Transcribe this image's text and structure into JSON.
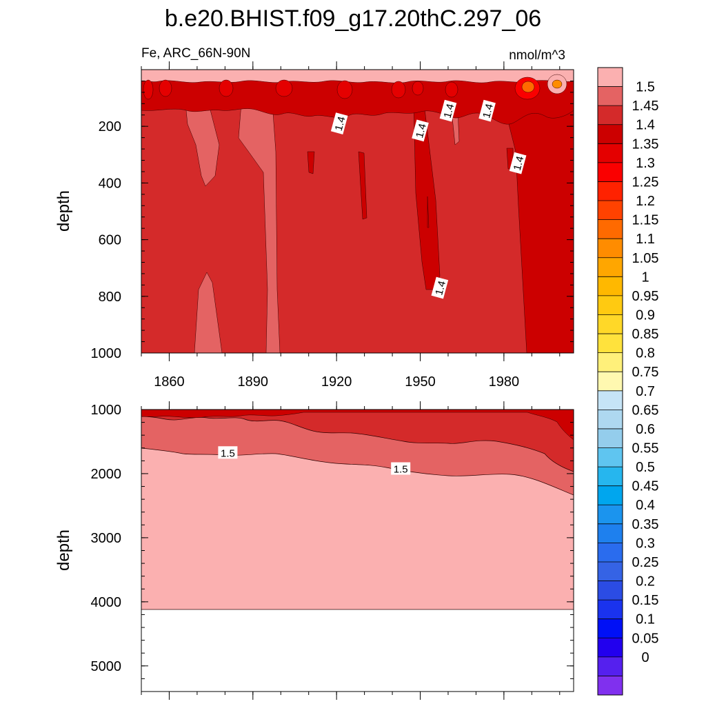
{
  "chart_data": {
    "type": "heatmap",
    "title": "b.e20.BHIST.f09_g17.20thC.297_06",
    "subtitle_left": "Fe, ARC_66N-90N",
    "subtitle_right": "nmol/m^3",
    "x_ticks": [
      1860,
      1890,
      1920,
      1950,
      1980
    ],
    "xlim": [
      1850,
      2005
    ],
    "panels": [
      {
        "name": "upper",
        "ylabel": "depth",
        "ylim": [
          0,
          1000
        ],
        "y_ticks": [
          200,
          400,
          600,
          800,
          1000
        ],
        "background_value": 1.4,
        "contour_labels": [
          {
            "text": "1.4",
            "year": 1921,
            "depth": 190
          },
          {
            "text": "1.4",
            "year": 1950,
            "depth": 215
          },
          {
            "text": "1.4",
            "year": 1960,
            "depth": 145
          },
          {
            "text": "1.4",
            "year": 1974,
            "depth": 145
          },
          {
            "text": "1.4",
            "year": 1985,
            "depth": 330
          },
          {
            "text": "1.4",
            "year": 1957,
            "depth": 770
          }
        ]
      },
      {
        "name": "lower",
        "ylabel": "depth",
        "ylim": [
          1000,
          5400
        ],
        "y_ticks": [
          1000,
          2000,
          3000,
          4000,
          5000
        ],
        "bottom_depth": 4120,
        "contour_labels": [
          {
            "text": "1.5",
            "year": 1881,
            "depth": 1670
          },
          {
            "text": "1.5",
            "year": 1943,
            "depth": 1920
          }
        ]
      }
    ],
    "colorbar": {
      "labels": [
        "1.5",
        "1.45",
        "1.4",
        "1.35",
        "1.3",
        "1.25",
        "1.2",
        "1.15",
        "1.1",
        "1.05",
        "1",
        "0.95",
        "0.9",
        "0.85",
        "0.8",
        "0.75",
        "0.7",
        "0.65",
        "0.6",
        "0.55",
        "0.5",
        "0.45",
        "0.4",
        "0.35",
        "0.3",
        "0.25",
        "0.2",
        "0.15",
        "0.1",
        "0.05",
        "0"
      ],
      "colors": [
        "#fbb0b0",
        "#e46363",
        "#d42a2a",
        "#cc0000",
        "#e40000",
        "#fa0000",
        "#ff2200",
        "#ff4200",
        "#ff6a00",
        "#ff8c00",
        "#ffa600",
        "#ffb800",
        "#ffca11",
        "#ffd828",
        "#ffe23c",
        "#fff07a",
        "#fff8b0",
        "#c6e4f6",
        "#aed8f0",
        "#94cdec",
        "#5fc5f0",
        "#26b6ee",
        "#00a6ee",
        "#1b94ee",
        "#1e80ee",
        "#2a6cee",
        "#3563e5",
        "#2b4ce4",
        "#1a33ee",
        "#0010f6",
        "#2200ee",
        "#5520ee",
        "#8030ee"
      ]
    }
  }
}
